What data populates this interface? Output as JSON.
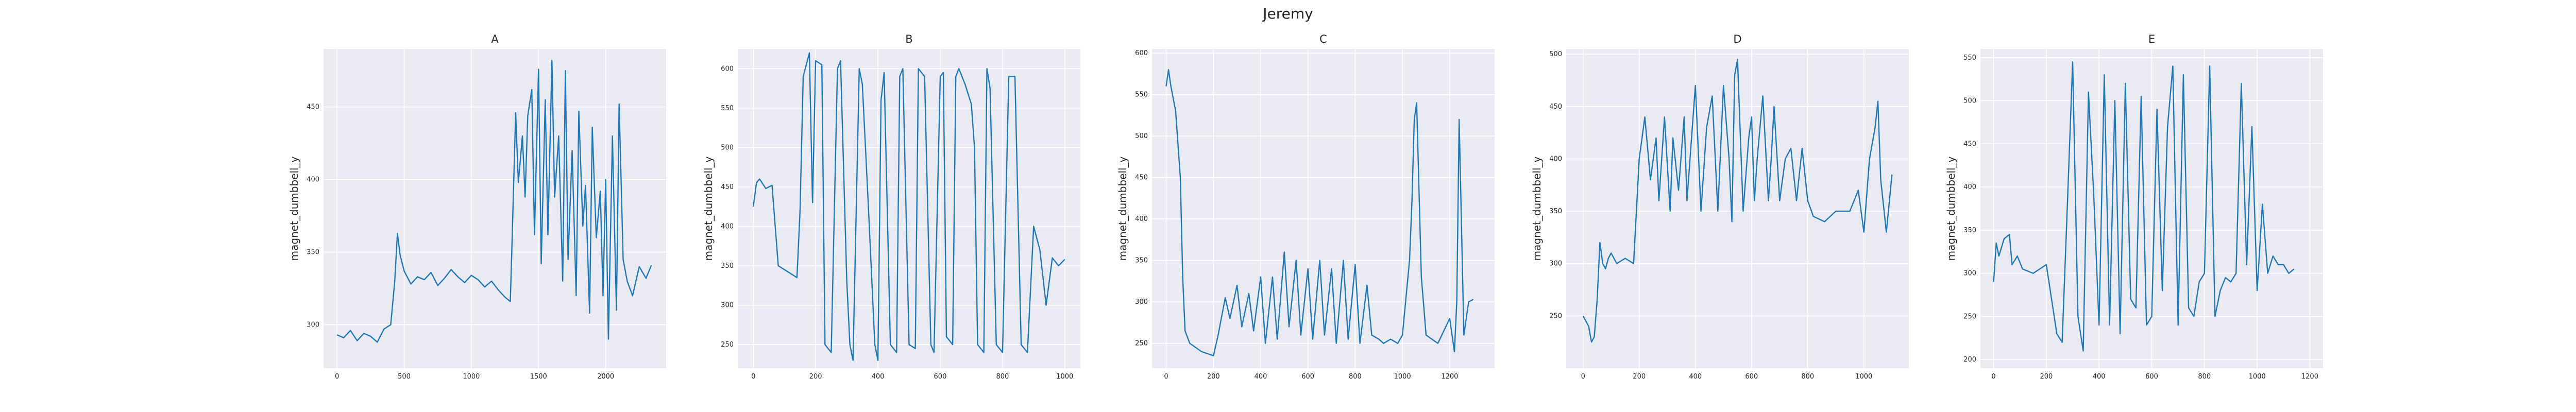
{
  "figure": {
    "title": "Jeremy"
  },
  "chart_data": [
    {
      "type": "line",
      "title": "A",
      "xlabel": "",
      "ylabel": "magnet_dumbbell_y",
      "xlim": [
        -100,
        2450
      ],
      "ylim": [
        270,
        490
      ],
      "xticks": [
        0,
        500,
        1000,
        1500,
        2000
      ],
      "yticks": [
        300,
        350,
        400,
        450
      ],
      "grid": true,
      "series": [
        {
          "x": [
            0,
            50,
            100,
            150,
            200,
            250,
            300,
            350,
            400,
            430,
            450,
            470,
            500,
            550,
            600,
            650,
            700,
            750,
            800,
            850,
            900,
            950,
            1000,
            1050,
            1100,
            1150,
            1200,
            1250,
            1290,
            1300,
            1330,
            1350,
            1380,
            1400,
            1420,
            1450,
            1470,
            1500,
            1520,
            1550,
            1570,
            1600,
            1620,
            1650,
            1680,
            1700,
            1720,
            1750,
            1780,
            1800,
            1830,
            1850,
            1880,
            1900,
            1930,
            1960,
            1980,
            2000,
            2020,
            2050,
            2080,
            2100,
            2130,
            2160,
            2200,
            2250,
            2300,
            2340
          ],
          "y": [
            293,
            291,
            296,
            289,
            294,
            292,
            288,
            297,
            300,
            330,
            363,
            348,
            337,
            328,
            333,
            331,
            336,
            327,
            332,
            338,
            333,
            329,
            334,
            331,
            326,
            330,
            324,
            319,
            316,
            347,
            446,
            398,
            430,
            388,
            444,
            462,
            362,
            476,
            342,
            455,
            362,
            482,
            388,
            430,
            330,
            475,
            345,
            420,
            320,
            447,
            368,
            396,
            308,
            436,
            360,
            392,
            320,
            400,
            290,
            430,
            310,
            452,
            345,
            330,
            320,
            340,
            332,
            341
          ]
        }
      ]
    },
    {
      "type": "line",
      "title": "B",
      "xlabel": "",
      "ylabel": "magnet_dumbbell_y",
      "xlim": [
        -50,
        1050
      ],
      "ylim": [
        220,
        625
      ],
      "xticks": [
        0,
        200,
        400,
        600,
        800,
        1000
      ],
      "yticks": [
        250,
        300,
        350,
        400,
        450,
        500,
        550,
        600
      ],
      "grid": true,
      "series": [
        {
          "x": [
            0,
            10,
            20,
            40,
            60,
            80,
            100,
            120,
            140,
            150,
            160,
            180,
            190,
            200,
            220,
            230,
            250,
            270,
            280,
            300,
            310,
            320,
            340,
            350,
            370,
            390,
            400,
            410,
            420,
            440,
            460,
            470,
            480,
            500,
            520,
            530,
            550,
            570,
            580,
            600,
            610,
            620,
            640,
            650,
            660,
            680,
            700,
            710,
            720,
            740,
            750,
            760,
            780,
            800,
            820,
            840,
            860,
            880,
            900,
            920,
            940,
            960,
            980,
            1000
          ],
          "y": [
            425,
            455,
            460,
            448,
            452,
            350,
            345,
            340,
            335,
            420,
            590,
            620,
            430,
            610,
            605,
            250,
            240,
            600,
            610,
            330,
            250,
            230,
            600,
            580,
            420,
            250,
            230,
            560,
            595,
            250,
            240,
            590,
            600,
            250,
            245,
            600,
            590,
            250,
            240,
            590,
            595,
            260,
            250,
            590,
            600,
            580,
            555,
            500,
            250,
            240,
            600,
            575,
            250,
            240,
            590,
            590,
            250,
            240,
            400,
            370,
            300,
            360,
            350,
            358
          ]
        }
      ]
    },
    {
      "type": "line",
      "title": "C",
      "xlabel": "",
      "ylabel": "magnet_dumbbell_y",
      "xlim": [
        -60,
        1390
      ],
      "ylim": [
        220,
        605
      ],
      "xticks": [
        0,
        200,
        400,
        600,
        800,
        1000,
        1200
      ],
      "yticks": [
        250,
        300,
        350,
        400,
        450,
        500,
        550,
        600
      ],
      "grid": true,
      "series": [
        {
          "x": [
            0,
            10,
            20,
            40,
            60,
            70,
            80,
            100,
            150,
            200,
            220,
            250,
            270,
            300,
            320,
            350,
            370,
            400,
            420,
            450,
            470,
            500,
            520,
            550,
            570,
            600,
            620,
            650,
            670,
            700,
            720,
            750,
            770,
            800,
            820,
            850,
            870,
            900,
            920,
            950,
            980,
            1000,
            1030,
            1040,
            1050,
            1060,
            1080,
            1100,
            1150,
            1200,
            1220,
            1230,
            1240,
            1260,
            1280,
            1300
          ],
          "y": [
            560,
            580,
            560,
            530,
            450,
            330,
            265,
            250,
            240,
            235,
            260,
            305,
            280,
            320,
            270,
            310,
            265,
            330,
            250,
            330,
            255,
            360,
            270,
            350,
            260,
            340,
            255,
            350,
            260,
            340,
            250,
            350,
            255,
            345,
            250,
            320,
            260,
            255,
            250,
            255,
            250,
            260,
            350,
            420,
            520,
            540,
            330,
            260,
            250,
            280,
            240,
            300,
            520,
            260,
            300,
            303
          ]
        }
      ]
    },
    {
      "type": "line",
      "title": "D",
      "xlabel": "",
      "ylabel": "magnet_dumbbell_y",
      "xlim": [
        -60,
        1160
      ],
      "ylim": [
        200,
        505
      ],
      "xticks": [
        0,
        200,
        400,
        600,
        800,
        1000
      ],
      "yticks": [
        250,
        300,
        350,
        400,
        450,
        500
      ],
      "grid": true,
      "series": [
        {
          "x": [
            0,
            10,
            20,
            30,
            40,
            50,
            60,
            70,
            80,
            90,
            100,
            120,
            150,
            180,
            200,
            210,
            220,
            240,
            260,
            270,
            290,
            310,
            320,
            340,
            360,
            370,
            400,
            420,
            440,
            460,
            480,
            500,
            520,
            530,
            540,
            550,
            570,
            590,
            600,
            610,
            620,
            640,
            660,
            670,
            680,
            700,
            720,
            740,
            760,
            780,
            800,
            820,
            860,
            900,
            950,
            980,
            1000,
            1020,
            1040,
            1050,
            1060,
            1080,
            1100
          ],
          "y": [
            250,
            245,
            240,
            225,
            230,
            265,
            320,
            300,
            295,
            305,
            310,
            300,
            305,
            300,
            400,
            420,
            440,
            380,
            420,
            360,
            440,
            350,
            420,
            370,
            440,
            360,
            470,
            350,
            430,
            460,
            350,
            470,
            400,
            340,
            480,
            495,
            350,
            420,
            440,
            360,
            400,
            460,
            360,
            400,
            450,
            360,
            400,
            410,
            360,
            410,
            360,
            345,
            340,
            350,
            350,
            370,
            330,
            400,
            430,
            455,
            380,
            330,
            385
          ]
        }
      ]
    },
    {
      "type": "line",
      "title": "E",
      "xlabel": "",
      "ylabel": "magnet_dumbbell_y",
      "xlim": [
        -50,
        1250
      ],
      "ylim": [
        190,
        560
      ],
      "xticks": [
        0,
        200,
        400,
        600,
        800,
        1000,
        1200
      ],
      "yticks": [
        200,
        250,
        300,
        350,
        400,
        450,
        500,
        550
      ],
      "grid": true,
      "series": [
        {
          "x": [
            0,
            10,
            20,
            40,
            60,
            70,
            90,
            110,
            150,
            200,
            240,
            260,
            280,
            300,
            320,
            340,
            360,
            380,
            400,
            420,
            440,
            460,
            480,
            500,
            520,
            540,
            560,
            580,
            600,
            620,
            640,
            660,
            680,
            700,
            720,
            740,
            760,
            780,
            800,
            820,
            840,
            860,
            880,
            900,
            920,
            940,
            960,
            980,
            1000,
            1020,
            1040,
            1060,
            1080,
            1100,
            1120,
            1140
          ],
          "y": [
            290,
            335,
            320,
            340,
            345,
            310,
            320,
            305,
            300,
            310,
            230,
            220,
            380,
            545,
            250,
            210,
            510,
            390,
            240,
            530,
            240,
            500,
            230,
            520,
            270,
            260,
            505,
            240,
            250,
            490,
            280,
            470,
            540,
            240,
            530,
            260,
            250,
            290,
            300,
            540,
            250,
            280,
            295,
            290,
            300,
            520,
            310,
            470,
            280,
            380,
            300,
            320,
            310,
            310,
            300,
            305
          ]
        }
      ]
    }
  ]
}
